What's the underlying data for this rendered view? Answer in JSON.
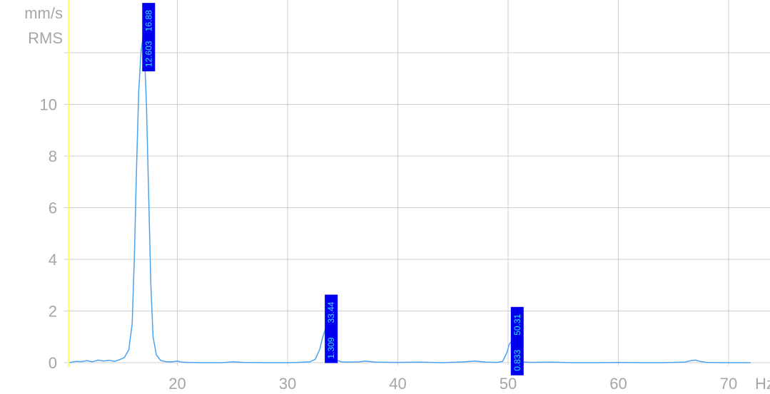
{
  "chart_data": {
    "type": "line",
    "y_unit_line1": "mm/s",
    "y_unit_line2": "RMS",
    "x_unit": "Hz",
    "xlim": [
      10,
      72
    ],
    "ylim": [
      0,
      12
    ],
    "x_ticks": [
      20,
      30,
      40,
      50,
      60,
      70
    ],
    "y_ticks": [
      0,
      2,
      4,
      6,
      8,
      10
    ],
    "grid": true,
    "colors": {
      "line": "#4aa3f0",
      "marker_line": "#ffff66",
      "label_bg": "#0000ee",
      "label_text": "#33e0ff",
      "grid": "#cfcfcf",
      "tick_text": "#a6a6a6"
    },
    "series": [
      {
        "x": [
          10.2,
          10.8,
          11.3,
          11.8,
          12.3,
          12.8,
          13.3,
          13.8,
          14.3,
          14.8,
          15.2,
          15.6,
          15.9,
          16.1,
          16.3,
          16.5,
          16.7,
          16.88,
          17.0,
          17.2,
          17.4,
          17.6,
          17.8,
          18.1,
          18.5,
          19.0,
          19.5,
          20.0,
          20.4,
          21.0,
          22.0,
          24.0,
          25.0,
          26.0,
          28.0,
          30.0,
          31.0,
          32.0,
          32.5,
          32.9,
          33.2,
          33.44,
          33.7,
          34.0,
          34.4,
          34.9,
          35.5,
          36.5,
          37.0,
          38.0,
          40.0,
          42.0,
          44.0,
          46.0,
          47.0,
          48.0,
          49.0,
          49.5,
          49.9,
          50.1,
          50.31,
          50.5,
          50.8,
          51.2,
          52.0,
          54.0,
          56.0,
          58.0,
          60.0,
          62.0,
          64.0,
          66.0,
          66.6,
          67.0,
          67.4,
          68.0,
          70.0,
          72.0
        ],
        "y": [
          0.0,
          0.05,
          0.04,
          0.08,
          0.03,
          0.1,
          0.06,
          0.09,
          0.05,
          0.12,
          0.2,
          0.5,
          1.5,
          4.0,
          7.5,
          10.5,
          12.0,
          12.603,
          12.2,
          10.0,
          6.5,
          3.0,
          1.0,
          0.3,
          0.08,
          0.04,
          0.03,
          0.06,
          0.02,
          0.01,
          0.0,
          0.0,
          0.03,
          0.01,
          0.0,
          0.0,
          0.01,
          0.03,
          0.12,
          0.5,
          1.0,
          1.309,
          1.05,
          0.5,
          0.1,
          0.03,
          0.02,
          0.03,
          0.06,
          0.02,
          0.01,
          0.02,
          0.0,
          0.03,
          0.06,
          0.02,
          0.01,
          0.05,
          0.4,
          0.7,
          0.833,
          0.6,
          0.2,
          0.03,
          0.01,
          0.02,
          0.0,
          0.0,
          0.01,
          0.0,
          0.0,
          0.02,
          0.08,
          0.1,
          0.05,
          0.01,
          0.0,
          0.0
        ]
      }
    ],
    "peaks": [
      {
        "amplitude": "12.603",
        "frequency": "16.88",
        "x": 16.88,
        "y": 12.603
      },
      {
        "amplitude": "1.309",
        "frequency": "33.44",
        "x": 33.44,
        "y": 1.309
      },
      {
        "amplitude": "0.833",
        "frequency": "50.31",
        "x": 50.31,
        "y": 0.833
      }
    ]
  }
}
